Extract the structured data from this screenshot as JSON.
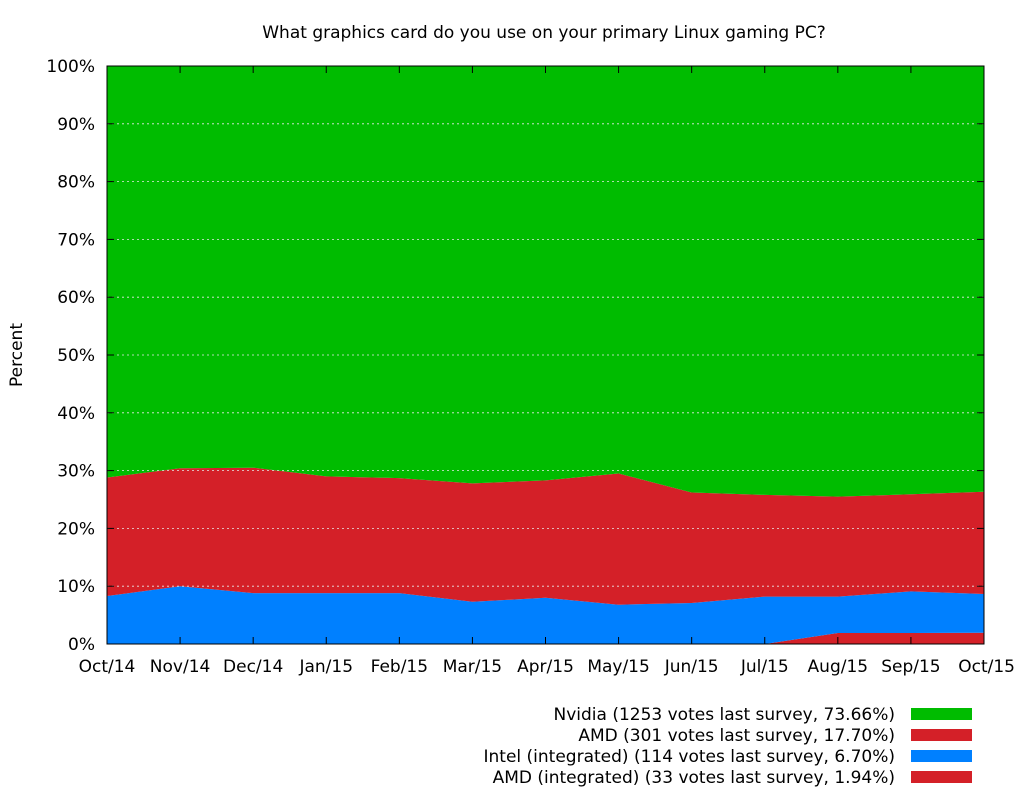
{
  "chart_data": {
    "type": "area",
    "stacked": true,
    "title": "What graphics card do you use on your primary Linux gaming PC?",
    "xlabel": "",
    "ylabel": "Percent",
    "ylim": [
      0,
      100
    ],
    "y_tick_labels": [
      "0%",
      "10%",
      "20%",
      "30%",
      "40%",
      "50%",
      "60%",
      "70%",
      "80%",
      "90%",
      "100%"
    ],
    "y_ticks": [
      0,
      10,
      20,
      30,
      40,
      50,
      60,
      70,
      80,
      90,
      100
    ],
    "categories": [
      "Oct/14",
      "Nov/14",
      "Dec/14",
      "Jan/15",
      "Feb/15",
      "Mar/15",
      "Apr/15",
      "May/15",
      "Jun/15",
      "Jul/15",
      "Aug/15",
      "Sep/15",
      "Oct/15"
    ],
    "grid": "horizontal dashed",
    "legend_position": "bottom-right",
    "series": [
      {
        "name": "AMD (integrated) (33 votes last survey, 1.94%)",
        "color": "#d42028",
        "values": [
          0,
          0,
          0,
          0,
          0,
          0,
          0,
          0,
          0,
          0,
          1.9,
          1.9,
          1.94
        ]
      },
      {
        "name": "Intel (integrated) (114 votes last survey, 6.70%)",
        "color": "#0080ff",
        "values": [
          8.3,
          10.0,
          8.8,
          8.8,
          8.8,
          7.3,
          8.0,
          6.8,
          7.1,
          8.2,
          6.3,
          7.2,
          6.7
        ]
      },
      {
        "name": "AMD (301 votes last survey, 17.70%)",
        "color": "#d42028",
        "values": [
          20.5,
          20.4,
          21.7,
          20.2,
          19.9,
          20.5,
          20.3,
          22.7,
          19.1,
          17.6,
          17.3,
          16.8,
          17.7
        ]
      },
      {
        "name": "Nvidia (1253 votes last survey, 73.66%)",
        "color": "#00bc00",
        "values": [
          71.2,
          69.6,
          69.5,
          71.0,
          71.3,
          72.2,
          71.7,
          70.5,
          73.8,
          74.2,
          74.5,
          74.1,
          73.66
        ]
      }
    ]
  }
}
